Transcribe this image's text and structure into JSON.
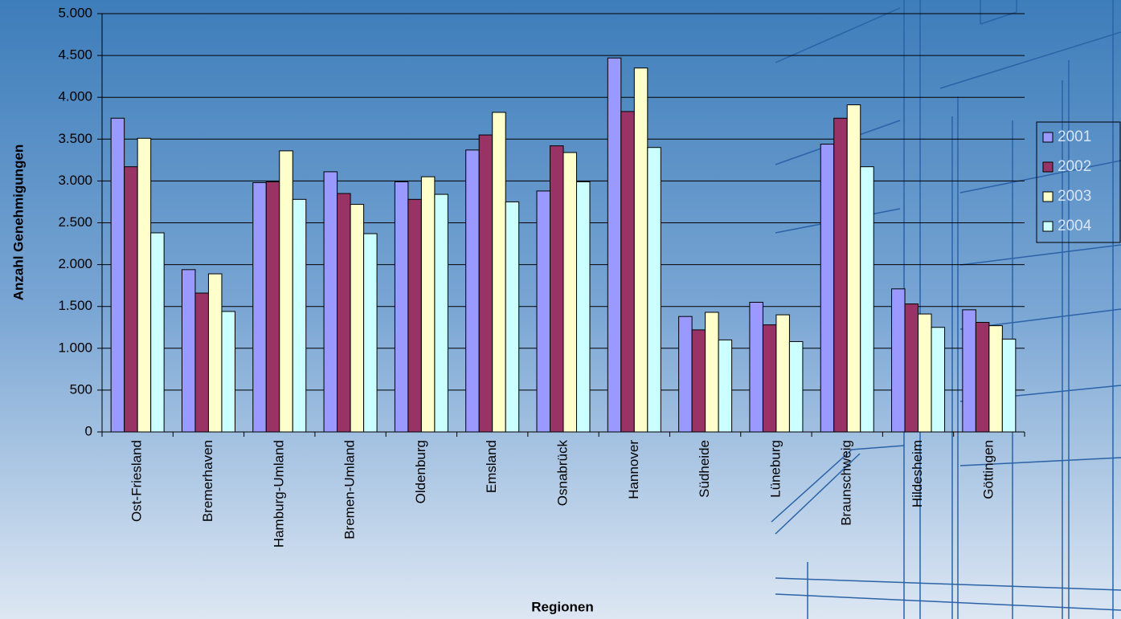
{
  "chart_data": {
    "type": "bar",
    "y_label": "Anzahl Genehmigungen",
    "x_label": "Regionen",
    "categories": [
      "Ost-Friesland",
      "Bremerhaven",
      "Hamburg-Umland",
      "Bremen-Umland",
      "Oldenburg",
      "Emsland",
      "Osnabrück",
      "Hannover",
      "Südheide",
      "Lüneburg",
      "Braunschweig",
      "Hildesheim",
      "Göttingen"
    ],
    "series": [
      {
        "name": "2001",
        "color": "#9999ff",
        "values": [
          3750,
          1940,
          2980,
          3110,
          2990,
          3370,
          2880,
          4470,
          1380,
          1550,
          3440,
          1710,
          1460
        ]
      },
      {
        "name": "2002",
        "color": "#993366",
        "values": [
          3170,
          1660,
          2990,
          2850,
          2780,
          3550,
          3420,
          3830,
          1220,
          1280,
          3750,
          1530,
          1310
        ]
      },
      {
        "name": "2003",
        "color": "#ffffcc",
        "values": [
          3510,
          1890,
          3360,
          2720,
          3050,
          3820,
          3340,
          4350,
          1430,
          1400,
          3910,
          1410,
          1270
        ]
      },
      {
        "name": "2004",
        "color": "#ccffff",
        "values": [
          2380,
          1440,
          2780,
          2370,
          2840,
          2750,
          2990,
          3400,
          1100,
          1080,
          3170,
          1250,
          1110
        ]
      }
    ],
    "ylim": [
      0,
      5000
    ],
    "yticks": [
      0,
      500,
      {
        "value": 1000,
        "label": "1.000"
      },
      {
        "value": 1500,
        "label": "1.500"
      },
      {
        "value": 2000,
        "label": "2.000"
      },
      {
        "value": 2500,
        "label": "2.500"
      },
      {
        "value": 3000,
        "label": "3.000"
      },
      {
        "value": 3500,
        "label": "3.500"
      },
      {
        "value": 4000,
        "label": "4.000"
      },
      {
        "value": 4500,
        "label": "4.500"
      },
      {
        "value": 5000,
        "label": "5.000"
      }
    ],
    "grid": true,
    "legend": "right"
  }
}
